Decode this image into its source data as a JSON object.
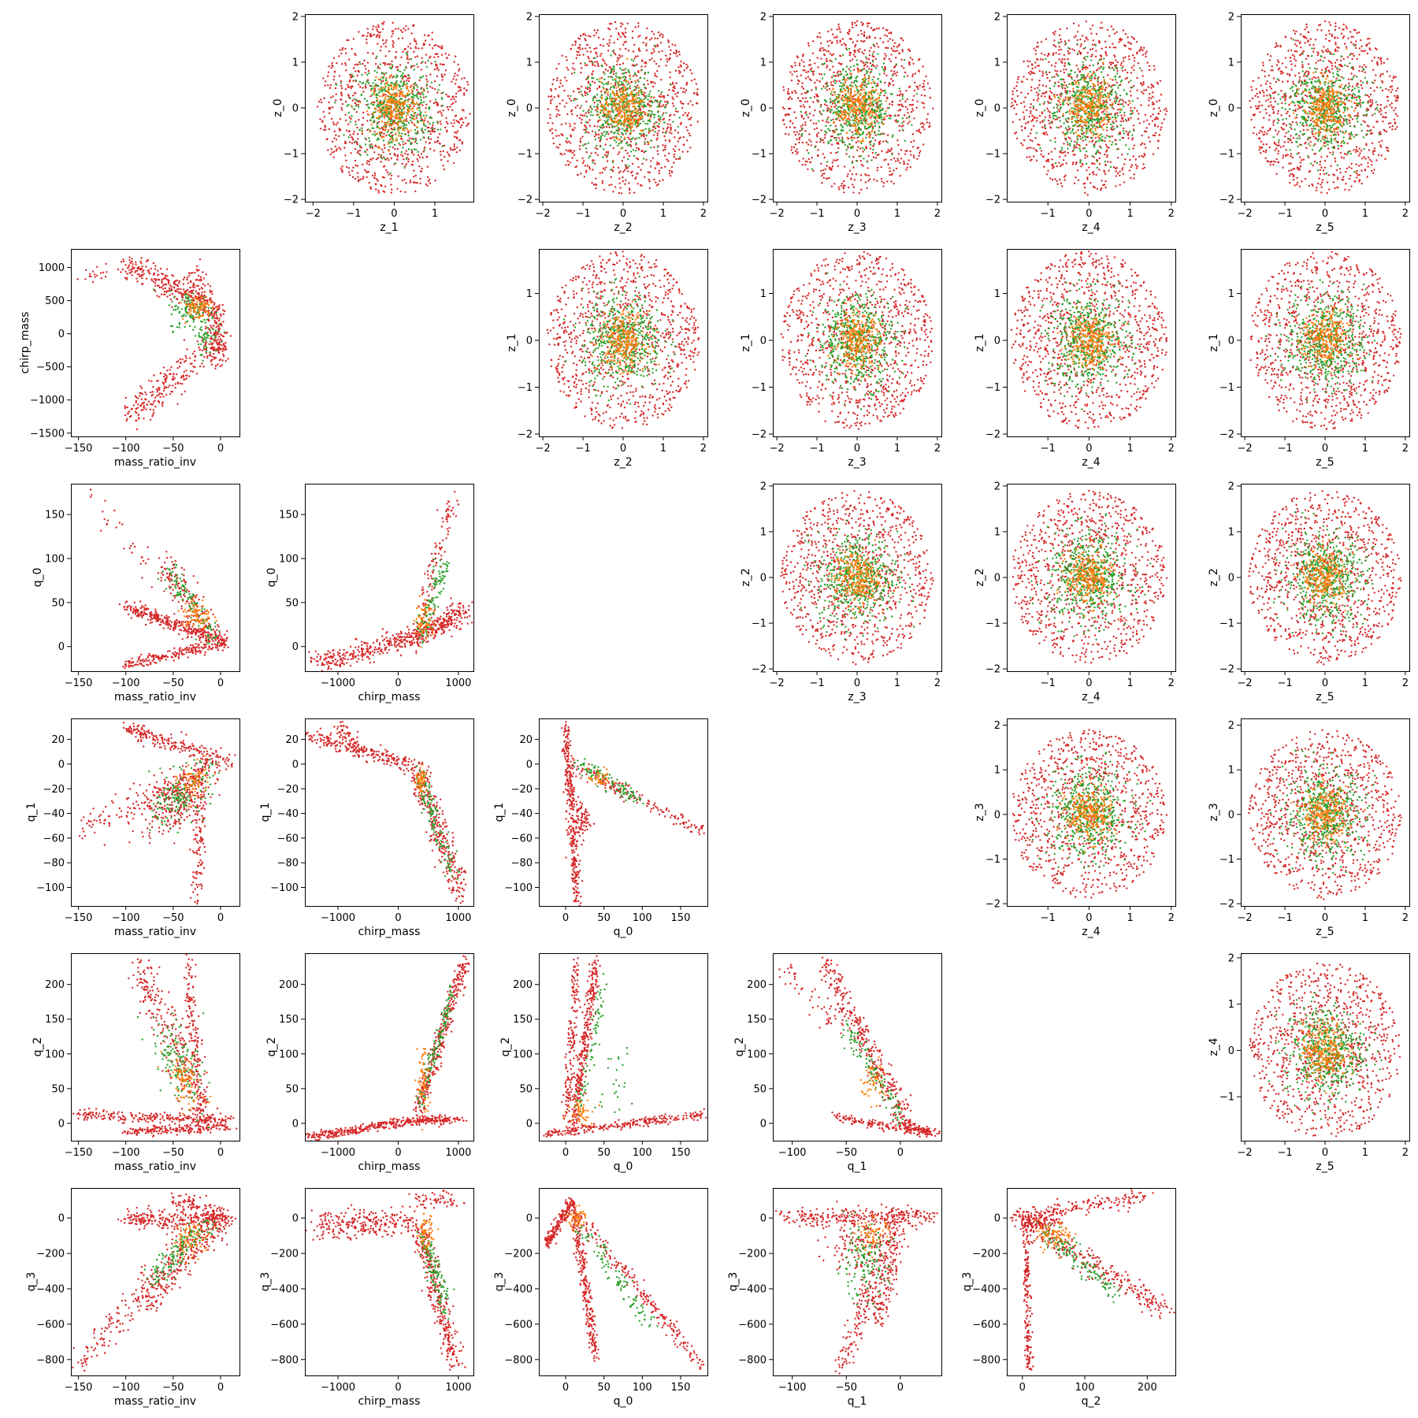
{
  "figure": {
    "type": "pair-plot",
    "colors": {
      "red": "#d62728",
      "green": "#2ca02c",
      "orange": "#ff7f0e"
    }
  },
  "chart_data": [
    {
      "type": "scatter",
      "row": 0,
      "col": 1,
      "xlabel": "z_1",
      "ylabel": "z_0",
      "xlim": [
        -2.2,
        1.95
      ],
      "ylim": [
        -2.05,
        2.05
      ],
      "xticks": [
        -2,
        -1,
        0,
        1
      ],
      "yticks": [
        -2,
        -1,
        0,
        1,
        2
      ],
      "pattern": "gaussian"
    },
    {
      "type": "scatter",
      "row": 0,
      "col": 2,
      "xlabel": "z_2",
      "ylabel": "z_0",
      "xlim": [
        -2.1,
        2.1
      ],
      "ylim": [
        -2.05,
        2.05
      ],
      "xticks": [
        -2,
        -1,
        0,
        1,
        2
      ],
      "yticks": [
        -2,
        -1,
        0,
        1,
        2
      ],
      "pattern": "gaussian"
    },
    {
      "type": "scatter",
      "row": 0,
      "col": 3,
      "xlabel": "z_3",
      "ylabel": "z_0",
      "xlim": [
        -2.1,
        2.1
      ],
      "ylim": [
        -2.05,
        2.05
      ],
      "xticks": [
        -2,
        -1,
        0,
        1,
        2
      ],
      "yticks": [
        -2,
        -1,
        0,
        1,
        2
      ],
      "pattern": "gaussian"
    },
    {
      "type": "scatter",
      "row": 0,
      "col": 4,
      "xlabel": "z_4",
      "ylabel": "z_0",
      "xlim": [
        -2.0,
        2.1
      ],
      "ylim": [
        -2.05,
        2.05
      ],
      "xticks": [
        -1,
        0,
        1,
        2
      ],
      "yticks": [
        -2,
        -1,
        0,
        1,
        2
      ],
      "pattern": "gaussian"
    },
    {
      "type": "scatter",
      "row": 0,
      "col": 5,
      "xlabel": "z_5",
      "ylabel": "z_0",
      "xlim": [
        -2.1,
        2.1
      ],
      "ylim": [
        -2.05,
        2.05
      ],
      "xticks": [
        -2,
        -1,
        0,
        1,
        2
      ],
      "yticks": [
        -2,
        -1,
        0,
        1,
        2
      ],
      "pattern": "gaussian"
    },
    {
      "type": "scatter",
      "row": 1,
      "col": 0,
      "xlabel": "mass_ratio_inv",
      "ylabel": "chirp_mass",
      "xlim": [
        -158,
        20
      ],
      "ylim": [
        -1550,
        1280
      ],
      "xticks": [
        -150,
        -100,
        -50,
        0
      ],
      "yticks": [
        -1500,
        -1000,
        -500,
        0,
        500,
        1000
      ],
      "pattern": "mri_cm"
    },
    {
      "type": "scatter",
      "row": 1,
      "col": 2,
      "xlabel": "z_2",
      "ylabel": "z_1",
      "xlim": [
        -2.1,
        2.1
      ],
      "ylim": [
        -2.05,
        1.95
      ],
      "xticks": [
        -2,
        -1,
        0,
        1,
        2
      ],
      "yticks": [
        -2,
        -1,
        0,
        1
      ],
      "pattern": "gaussian"
    },
    {
      "type": "scatter",
      "row": 1,
      "col": 3,
      "xlabel": "z_3",
      "ylabel": "z_1",
      "xlim": [
        -2.1,
        2.1
      ],
      "ylim": [
        -2.05,
        1.95
      ],
      "xticks": [
        -2,
        -1,
        0,
        1,
        2
      ],
      "yticks": [
        -2,
        -1,
        0,
        1
      ],
      "pattern": "gaussian"
    },
    {
      "type": "scatter",
      "row": 1,
      "col": 4,
      "xlabel": "z_4",
      "ylabel": "z_1",
      "xlim": [
        -2.0,
        2.1
      ],
      "ylim": [
        -2.05,
        1.95
      ],
      "xticks": [
        -1,
        0,
        1,
        2
      ],
      "yticks": [
        -2,
        -1,
        0,
        1
      ],
      "pattern": "gaussian"
    },
    {
      "type": "scatter",
      "row": 1,
      "col": 5,
      "xlabel": "z_5",
      "ylabel": "z_1",
      "xlim": [
        -2.1,
        2.1
      ],
      "ylim": [
        -2.05,
        1.95
      ],
      "xticks": [
        -2,
        -1,
        0,
        1,
        2
      ],
      "yticks": [
        -2,
        -1,
        0,
        1
      ],
      "pattern": "gaussian"
    },
    {
      "type": "scatter",
      "row": 2,
      "col": 0,
      "xlabel": "mass_ratio_inv",
      "ylabel": "q_0",
      "xlim": [
        -158,
        20
      ],
      "ylim": [
        -28,
        185
      ],
      "xticks": [
        -150,
        -100,
        -50,
        0
      ],
      "yticks": [
        0,
        50,
        100,
        150
      ],
      "pattern": "mri_q0"
    },
    {
      "type": "scatter",
      "row": 2,
      "col": 1,
      "xlabel": "chirp_mass",
      "ylabel": "q_0",
      "xlim": [
        -1550,
        1250
      ],
      "ylim": [
        -28,
        185
      ],
      "xticks": [
        -1000,
        0,
        1000
      ],
      "yticks": [
        0,
        50,
        100,
        150
      ],
      "pattern": "cm_q0"
    },
    {
      "type": "scatter",
      "row": 2,
      "col": 3,
      "xlabel": "z_3",
      "ylabel": "z_2",
      "xlim": [
        -2.1,
        2.1
      ],
      "ylim": [
        -2.05,
        2.05
      ],
      "xticks": [
        -2,
        -1,
        0,
        1,
        2
      ],
      "yticks": [
        -2,
        -1,
        0,
        1,
        2
      ],
      "pattern": "gaussian"
    },
    {
      "type": "scatter",
      "row": 2,
      "col": 4,
      "xlabel": "z_4",
      "ylabel": "z_2",
      "xlim": [
        -2.0,
        2.1
      ],
      "ylim": [
        -2.05,
        2.05
      ],
      "xticks": [
        -1,
        0,
        1,
        2
      ],
      "yticks": [
        -2,
        -1,
        0,
        1,
        2
      ],
      "pattern": "gaussian"
    },
    {
      "type": "scatter",
      "row": 2,
      "col": 5,
      "xlabel": "z_5",
      "ylabel": "z_2",
      "xlim": [
        -2.1,
        2.1
      ],
      "ylim": [
        -2.05,
        2.05
      ],
      "xticks": [
        -2,
        -1,
        0,
        1,
        2
      ],
      "yticks": [
        -2,
        -1,
        0,
        1,
        2
      ],
      "pattern": "gaussian"
    },
    {
      "type": "scatter",
      "row": 3,
      "col": 0,
      "xlabel": "mass_ratio_inv",
      "ylabel": "q_1",
      "xlim": [
        -158,
        20
      ],
      "ylim": [
        -115,
        37
      ],
      "xticks": [
        -150,
        -100,
        -50,
        0
      ],
      "yticks": [
        -100,
        -80,
        -60,
        -40,
        -20,
        0,
        20
      ],
      "pattern": "mri_q1"
    },
    {
      "type": "scatter",
      "row": 3,
      "col": 1,
      "xlabel": "chirp_mass",
      "ylabel": "q_1",
      "xlim": [
        -1550,
        1250
      ],
      "ylim": [
        -115,
        37
      ],
      "xticks": [
        -1000,
        0,
        1000
      ],
      "yticks": [
        -100,
        -80,
        -60,
        -40,
        -20,
        0,
        20
      ],
      "pattern": "cm_q1"
    },
    {
      "type": "scatter",
      "row": 3,
      "col": 2,
      "xlabel": "q_0",
      "ylabel": "q_1",
      "xlim": [
        -35,
        185
      ],
      "ylim": [
        -115,
        37
      ],
      "xticks": [
        0,
        50,
        100,
        150
      ],
      "yticks": [
        -100,
        -80,
        -60,
        -40,
        -20,
        0,
        20
      ],
      "pattern": "q0_q1"
    },
    {
      "type": "scatter",
      "row": 3,
      "col": 4,
      "xlabel": "z_4",
      "ylabel": "z_3",
      "xlim": [
        -2.0,
        2.1
      ],
      "ylim": [
        -2.05,
        2.15
      ],
      "xticks": [
        -1,
        0,
        1,
        2
      ],
      "yticks": [
        -2,
        -1,
        0,
        1,
        2
      ],
      "pattern": "gaussian"
    },
    {
      "type": "scatter",
      "row": 3,
      "col": 5,
      "xlabel": "z_5",
      "ylabel": "z_3",
      "xlim": [
        -2.1,
        2.1
      ],
      "ylim": [
        -2.05,
        2.15
      ],
      "xticks": [
        -2,
        -1,
        0,
        1,
        2
      ],
      "yticks": [
        -2,
        -1,
        0,
        1,
        2
      ],
      "pattern": "gaussian"
    },
    {
      "type": "scatter",
      "row": 4,
      "col": 0,
      "xlabel": "mass_ratio_inv",
      "ylabel": "q_2",
      "xlim": [
        -158,
        20
      ],
      "ylim": [
        -25,
        245
      ],
      "xticks": [
        -150,
        -100,
        -50,
        0
      ],
      "yticks": [
        0,
        50,
        100,
        150,
        200
      ],
      "pattern": "mri_q2"
    },
    {
      "type": "scatter",
      "row": 4,
      "col": 1,
      "xlabel": "chirp_mass",
      "ylabel": "q_2",
      "xlim": [
        -1550,
        1250
      ],
      "ylim": [
        -25,
        245
      ],
      "xticks": [
        -1000,
        0,
        1000
      ],
      "yticks": [
        0,
        50,
        100,
        150,
        200
      ],
      "pattern": "cm_q2"
    },
    {
      "type": "scatter",
      "row": 4,
      "col": 2,
      "xlabel": "q_0",
      "ylabel": "q_2",
      "xlim": [
        -35,
        185
      ],
      "ylim": [
        -25,
        245
      ],
      "xticks": [
        0,
        50,
        100,
        150
      ],
      "yticks": [
        0,
        50,
        100,
        150,
        200
      ],
      "pattern": "q0_q2"
    },
    {
      "type": "scatter",
      "row": 4,
      "col": 3,
      "xlabel": "q_1",
      "ylabel": "q_2",
      "xlim": [
        -118,
        38
      ],
      "ylim": [
        -25,
        245
      ],
      "xticks": [
        -100,
        -50,
        0
      ],
      "yticks": [
        0,
        50,
        100,
        150,
        200
      ],
      "pattern": "q1_q2"
    },
    {
      "type": "scatter",
      "row": 4,
      "col": 5,
      "xlabel": "z_5",
      "ylabel": "z_4",
      "xlim": [
        -2.1,
        2.1
      ],
      "ylim": [
        -1.95,
        2.1
      ],
      "xticks": [
        -2,
        -1,
        0,
        1,
        2
      ],
      "yticks": [
        -1,
        0,
        1,
        2
      ],
      "pattern": "gaussian"
    },
    {
      "type": "scatter",
      "row": 5,
      "col": 0,
      "xlabel": "mass_ratio_inv",
      "ylabel": "q_3",
      "xlim": [
        -158,
        20
      ],
      "ylim": [
        -890,
        170
      ],
      "xticks": [
        -150,
        -100,
        -50,
        0
      ],
      "yticks": [
        -800,
        -600,
        -400,
        -200,
        0
      ],
      "pattern": "mri_q3"
    },
    {
      "type": "scatter",
      "row": 5,
      "col": 1,
      "xlabel": "chirp_mass",
      "ylabel": "q_3",
      "xlim": [
        -1550,
        1250
      ],
      "ylim": [
        -890,
        170
      ],
      "xticks": [
        -1000,
        0,
        1000
      ],
      "yticks": [
        -800,
        -600,
        -400,
        -200,
        0
      ],
      "pattern": "cm_q3"
    },
    {
      "type": "scatter",
      "row": 5,
      "col": 2,
      "xlabel": "q_0",
      "ylabel": "q_3",
      "xlim": [
        -35,
        185
      ],
      "ylim": [
        -890,
        170
      ],
      "xticks": [
        0,
        50,
        100,
        150
      ],
      "yticks": [
        -800,
        -600,
        -400,
        -200,
        0
      ],
      "pattern": "q0_q3"
    },
    {
      "type": "scatter",
      "row": 5,
      "col": 3,
      "xlabel": "q_1",
      "ylabel": "q_3",
      "xlim": [
        -118,
        38
      ],
      "ylim": [
        -890,
        170
      ],
      "xticks": [
        -100,
        -50,
        0
      ],
      "yticks": [
        -800,
        -600,
        -400,
        -200,
        0
      ],
      "pattern": "q1_q3"
    },
    {
      "type": "scatter",
      "row": 5,
      "col": 4,
      "xlabel": "q_2",
      "ylabel": "q_3",
      "xlim": [
        -25,
        245
      ],
      "ylim": [
        -890,
        170
      ],
      "xticks": [
        0,
        100,
        200
      ],
      "yticks": [
        -800,
        -600,
        -400,
        -200,
        0
      ],
      "pattern": "q2_q3"
    }
  ]
}
